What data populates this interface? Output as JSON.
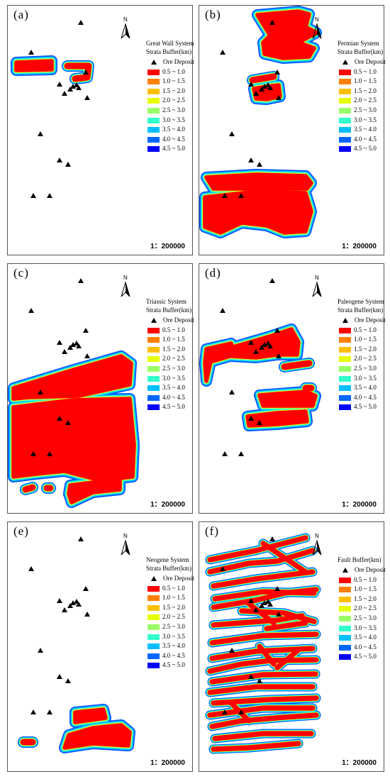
{
  "panels": [
    {
      "label": "(a)",
      "legend_title": [
        "Great Wall System",
        "Strata Buffer(km)"
      ],
      "scale": "1：200000",
      "north": "N"
    },
    {
      "label": "(b)",
      "legend_title": [
        "Permian System",
        "Strata Buffer(km)"
      ],
      "scale": "1：200000",
      "north": "N"
    },
    {
      "label": "(c)",
      "legend_title": [
        "Triassic System",
        "Strata Buffer(km)"
      ],
      "scale": "1：200000",
      "north": "N"
    },
    {
      "label": "(d)",
      "legend_title": [
        "Paleogene System",
        "Strata Buffer(km)"
      ],
      "scale": "1：200000",
      "north": "N"
    },
    {
      "label": "(e)",
      "legend_title": [
        "Neogene System",
        "Strata Buffer(km)"
      ],
      "scale": "1：200000",
      "north": "N"
    },
    {
      "label": "(f)",
      "legend_title": [
        "Fault Buffer(km)"
      ],
      "scale": "1：200000",
      "north": "N"
    }
  ],
  "legend": {
    "ore_label": "Ore Deposit",
    "classes": [
      {
        "label": "0.5 ~ 1.0",
        "color": "#ff0000"
      },
      {
        "label": "1.0 ~ 1.5",
        "color": "#ff7f00"
      },
      {
        "label": "1.5 ~ 2.0",
        "color": "#ffbf00"
      },
      {
        "label": "2.0 ~ 2.5",
        "color": "#e6ff00"
      },
      {
        "label": "2.5 ~ 3.0",
        "color": "#99ff66"
      },
      {
        "label": "3.0 ~ 3.5",
        "color": "#33ffcc"
      },
      {
        "label": "3.5 ~ 4.0",
        "color": "#00bfff"
      },
      {
        "label": "4.0 ~ 4.5",
        "color": "#0066ff"
      },
      {
        "label": "4.5 ~ 5.0",
        "color": "#0000ff"
      }
    ]
  }
}
